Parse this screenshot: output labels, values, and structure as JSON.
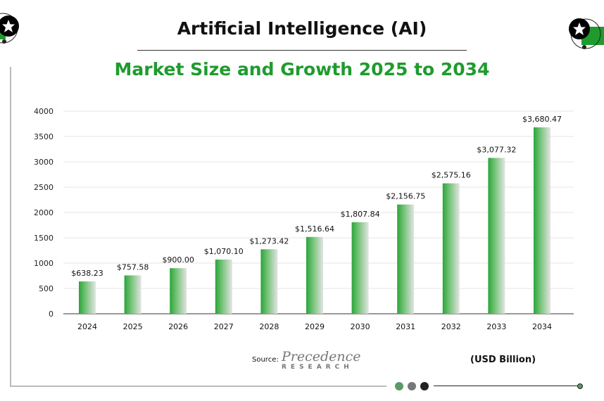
{
  "header": {
    "title": "Artificial Intelligence (AI)",
    "subtitle": "Market Size and Growth 2025 to 2034"
  },
  "footer": {
    "source_label": "Source:",
    "logo_text": "Precedence",
    "logo_subtext": "RESEARCH",
    "unit_label": "(USD Billion)"
  },
  "colors": {
    "accent": "#1f9b2e",
    "bar_gradient_start": "#2aa53a",
    "bar_gradient_end": "#e6e6e6",
    "dots": [
      "#5a9a66",
      "#777777",
      "#222222"
    ]
  },
  "icons": {
    "badge": "star-icon"
  },
  "chart_data": {
    "type": "bar",
    "title": "Market Size and Growth 2025 to 2034",
    "xlabel": "",
    "ylabel": "",
    "categories": [
      "2024",
      "2025",
      "2026",
      "2027",
      "2028",
      "2029",
      "2030",
      "2031",
      "2032",
      "2033",
      "2034"
    ],
    "values": [
      638.23,
      757.58,
      900.0,
      1070.1,
      1273.42,
      1516.64,
      1807.84,
      2156.75,
      2575.16,
      3077.32,
      3680.47
    ],
    "data_labels": [
      "$638.23",
      "$757.58",
      "$900.00",
      "$1,070.10",
      "$1,273.42",
      "$1,516.64",
      "$1,807.84",
      "$2,156.75",
      "$2,575.16",
      "$3,077.32",
      "$3,680.47"
    ],
    "ylim": [
      0,
      4000
    ],
    "yticks": [
      "0",
      "500",
      "1000",
      "1500",
      "2000",
      "2500",
      "3000",
      "3500",
      "4000"
    ],
    "grid": true,
    "unit": "(USD Billion)"
  }
}
